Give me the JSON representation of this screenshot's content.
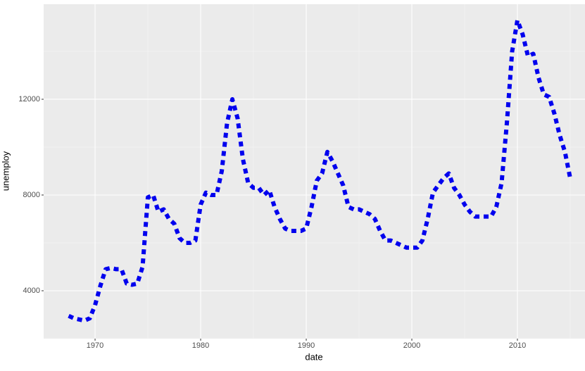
{
  "chart_data": {
    "type": "line",
    "x_label": "date",
    "y_label": "unemploy",
    "x": [
      1967.5,
      1968,
      1968.5,
      1969,
      1969.5,
      1970,
      1970.5,
      1971,
      1971.5,
      1972,
      1972.5,
      1973,
      1973.5,
      1974,
      1974.5,
      1975,
      1975.5,
      1976,
      1976.5,
      1977,
      1977.5,
      1978,
      1978.5,
      1979,
      1979.5,
      1980,
      1980.5,
      1981,
      1981.5,
      1982,
      1982.5,
      1983,
      1983.5,
      1984,
      1984.5,
      1985,
      1985.5,
      1986,
      1986.5,
      1987,
      1987.5,
      1988,
      1988.5,
      1989,
      1989.5,
      1990,
      1990.5,
      1991,
      1991.5,
      1992,
      1992.5,
      1993,
      1993.5,
      1994,
      1994.5,
      1995,
      1995.5,
      1996,
      1996.5,
      1997,
      1997.5,
      1998,
      1998.5,
      1999,
      1999.5,
      2000,
      2000.5,
      2001,
      2001.5,
      2002,
      2002.5,
      2003,
      2003.5,
      2004,
      2004.5,
      2005,
      2005.5,
      2006,
      2006.5,
      2007,
      2007.5,
      2008,
      2008.5,
      2009,
      2009.5,
      2010,
      2010.5,
      2011,
      2011.5,
      2012,
      2012.5,
      2013,
      2013.5,
      2014,
      2014.5,
      2015
    ],
    "series": [
      {
        "color": "#0000ee",
        "values": [
          2950,
          2850,
          2800,
          2750,
          2850,
          3400,
          4200,
          4900,
          4950,
          4900,
          4900,
          4300,
          4250,
          4300,
          5000,
          7900,
          8000,
          7300,
          7400,
          7000,
          6800,
          6200,
          6000,
          6000,
          6100,
          7600,
          8100,
          8000,
          8000,
          9000,
          11000,
          12000,
          11200,
          9500,
          8500,
          8300,
          8300,
          8000,
          8200,
          7500,
          7000,
          6600,
          6500,
          6500,
          6500,
          6600,
          7500,
          8600,
          8900,
          9800,
          9400,
          8900,
          8400,
          7500,
          7400,
          7400,
          7300,
          7200,
          7000,
          6500,
          6100,
          6100,
          6000,
          5900,
          5800,
          5800,
          5800,
          6100,
          7000,
          8100,
          8400,
          8700,
          8900,
          8300,
          8000,
          7600,
          7300,
          7100,
          7100,
          7100,
          7100,
          7500,
          8500,
          11000,
          14000,
          15300,
          14700,
          13800,
          13900,
          12900,
          12200,
          12100,
          11400,
          10500,
          9800,
          8700
        ]
      }
    ],
    "xlim": [
      1965.13,
      2016.4
    ],
    "ylim": [
      2000,
      15970
    ],
    "xticks": [
      1970,
      1980,
      1990,
      2000,
      2010
    ],
    "yticks": [
      4000,
      8000,
      12000
    ],
    "grid": true
  }
}
